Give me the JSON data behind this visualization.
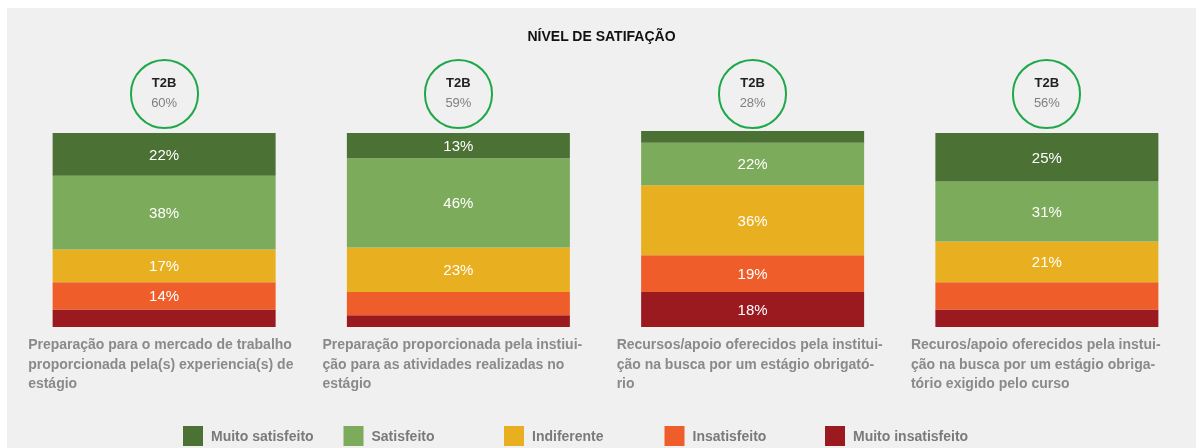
{
  "chart_data": {
    "type": "bar",
    "title": "NÍVEL DE SATIFAÇÃO",
    "categories": [
      "Preparação para o mercado de trabalho\nproporcionada pela(s) experiencia(s) de\nestágio",
      "Preparação proporcionada pela instiui-\nção para as atividades realizadas no\nestágio",
      "Recursos/apoio oferecidos pela institui-\nção na busca por um estágio obrigató-\nrio",
      "Recuros/apoio oferecidos pela instui-\nção na busca por um estágio obriga-\ntório exigido pelo curso"
    ],
    "stacked": true,
    "series": [
      {
        "name": "Muito insatisfeito",
        "color": "#9a1a20",
        "values": [
          9,
          6,
          18,
          9
        ],
        "value_labels": [
          null,
          null,
          "18%",
          null
        ]
      },
      {
        "name": "Insatisfeito",
        "color": "#ef5e2a",
        "values": [
          14,
          12,
          19,
          14
        ],
        "value_labels": [
          "14%",
          null,
          "19%",
          null
        ]
      },
      {
        "name": "Indiferente",
        "color": "#e8b021",
        "values": [
          17,
          23,
          36,
          21
        ],
        "value_labels": [
          "17%",
          "23%",
          "36%",
          "21%"
        ]
      },
      {
        "name": "Satisfeito",
        "color": "#7dab5c",
        "values": [
          38,
          46,
          22,
          31
        ],
        "value_labels": [
          "38%",
          "46%",
          "22%",
          "31%"
        ]
      },
      {
        "name": "Muito satisfeito",
        "color": "#4c7134",
        "values": [
          22,
          13,
          6,
          25
        ],
        "value_labels": [
          "22%",
          "13%",
          null,
          "25%"
        ]
      }
    ],
    "annotations": [
      "T2B\n60%",
      "T2B\n59%",
      "T2B\n28%",
      "T2B\n56%"
    ],
    "legend": "bottom",
    "tick_labels": "x"
  }
}
